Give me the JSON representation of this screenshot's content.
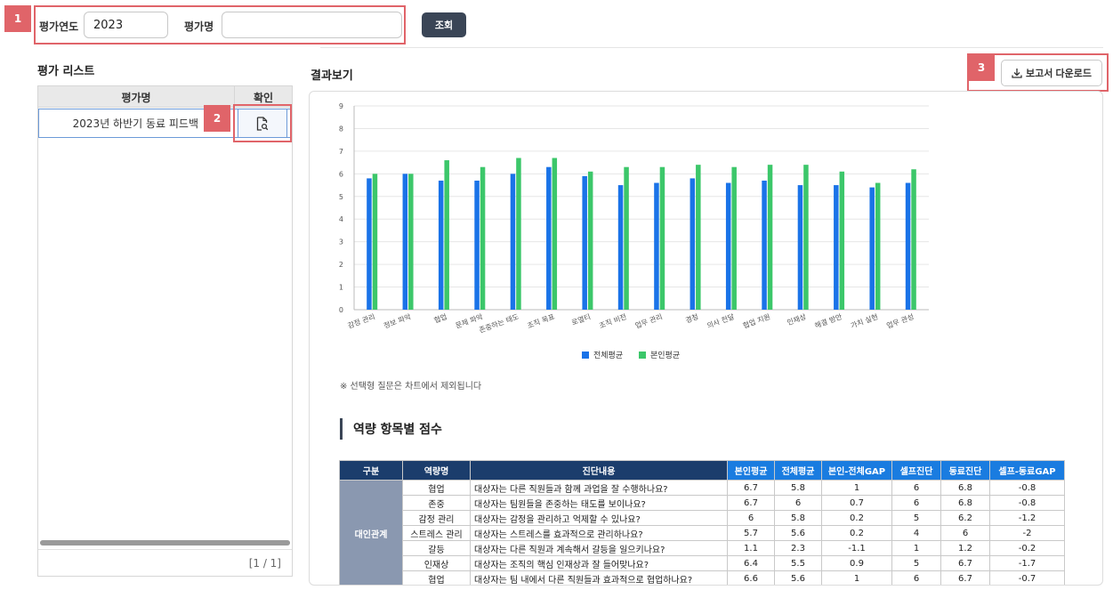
{
  "search": {
    "year_label": "평가연도",
    "year_value": "2023",
    "name_label": "평가명",
    "name_value": "",
    "search_button": "조회"
  },
  "badges": [
    "1",
    "2",
    "3"
  ],
  "list": {
    "title": "평가 리스트",
    "col_name": "평가명",
    "col_confirm": "확인",
    "rows": [
      {
        "name": "2023년 하반기 동료 피드백"
      }
    ],
    "pager": "[1 / 1]"
  },
  "result": {
    "title": "결과보기",
    "download_button": "보고서 다운로드",
    "note": "※ 선택형 질문은 차트에서 제외됩니다",
    "score_title": "역량 항목별 점수"
  },
  "chart_data": {
    "type": "bar",
    "categories": [
      "감정 관리",
      "정보 파악",
      "협업",
      "문제 파악",
      "존중하는 태도",
      "조직 목표",
      "로열티",
      "조직 비전",
      "업무 관리",
      "경청",
      "의사 전달",
      "협업 지원",
      "인재상",
      "해결 방안",
      "가치 실현",
      "업무 관성"
    ],
    "series": [
      {
        "name": "전체평균",
        "color": "#1a73e8",
        "values": [
          5.8,
          6.0,
          5.7,
          5.7,
          6.0,
          6.3,
          5.9,
          5.5,
          5.6,
          5.8,
          5.6,
          5.7,
          5.5,
          5.5,
          5.4,
          5.6
        ]
      },
      {
        "name": "본인평균",
        "color": "#3cc76a",
        "values": [
          6.0,
          6.0,
          6.6,
          6.3,
          6.7,
          6.7,
          6.1,
          6.3,
          6.3,
          6.4,
          6.3,
          6.4,
          6.4,
          6.1,
          5.6,
          6.2
        ]
      }
    ],
    "yticks": [
      "0",
      "1",
      "2",
      "3",
      "4",
      "5",
      "6",
      "7",
      "8",
      "9"
    ],
    "ylim": [
      0,
      9
    ],
    "grid": true,
    "legend": "bottom"
  },
  "table": {
    "headers": [
      "구분",
      "역량명",
      "진단내용",
      "본인평균",
      "전체평균",
      "본인-전체GAP",
      "셀프진단",
      "동료진단",
      "셀프-동료GAP"
    ],
    "group": "대인관계",
    "rows": [
      [
        "협업",
        "대상자는 다른 직원들과 함께 과업을 잘 수행하나요?",
        "6.7",
        "5.8",
        "1",
        "6",
        "6.8",
        "-0.8"
      ],
      [
        "존중",
        "대상자는 팀원들을 존중하는 태도를 보이나요?",
        "6.7",
        "6",
        "0.7",
        "6",
        "6.8",
        "-0.8"
      ],
      [
        "감정 관리",
        "대상자는 감정을 관리하고 억제할 수 있나요?",
        "6",
        "5.8",
        "0.2",
        "5",
        "6.2",
        "-1.2"
      ],
      [
        "스트레스 관리",
        "대상자는 스트레스를 효과적으로 관리하나요?",
        "5.7",
        "5.6",
        "0.2",
        "4",
        "6",
        "-2"
      ],
      [
        "갈등",
        "대상자는 다른 직원과 계속해서 갈등을 일으키나요?",
        "1.1",
        "2.3",
        "-1.1",
        "1",
        "1.2",
        "-0.2"
      ],
      [
        "인재상",
        "대상자는 조직의 핵심 인재상과 잘 들어맞나요?",
        "6.4",
        "5.5",
        "0.9",
        "5",
        "6.7",
        "-1.7"
      ],
      [
        "협업",
        "대상자는 팀 내에서 다른 직원들과 효과적으로 협업하나요?",
        "6.6",
        "5.6",
        "1",
        "6",
        "6.7",
        "-0.7"
      ]
    ]
  }
}
